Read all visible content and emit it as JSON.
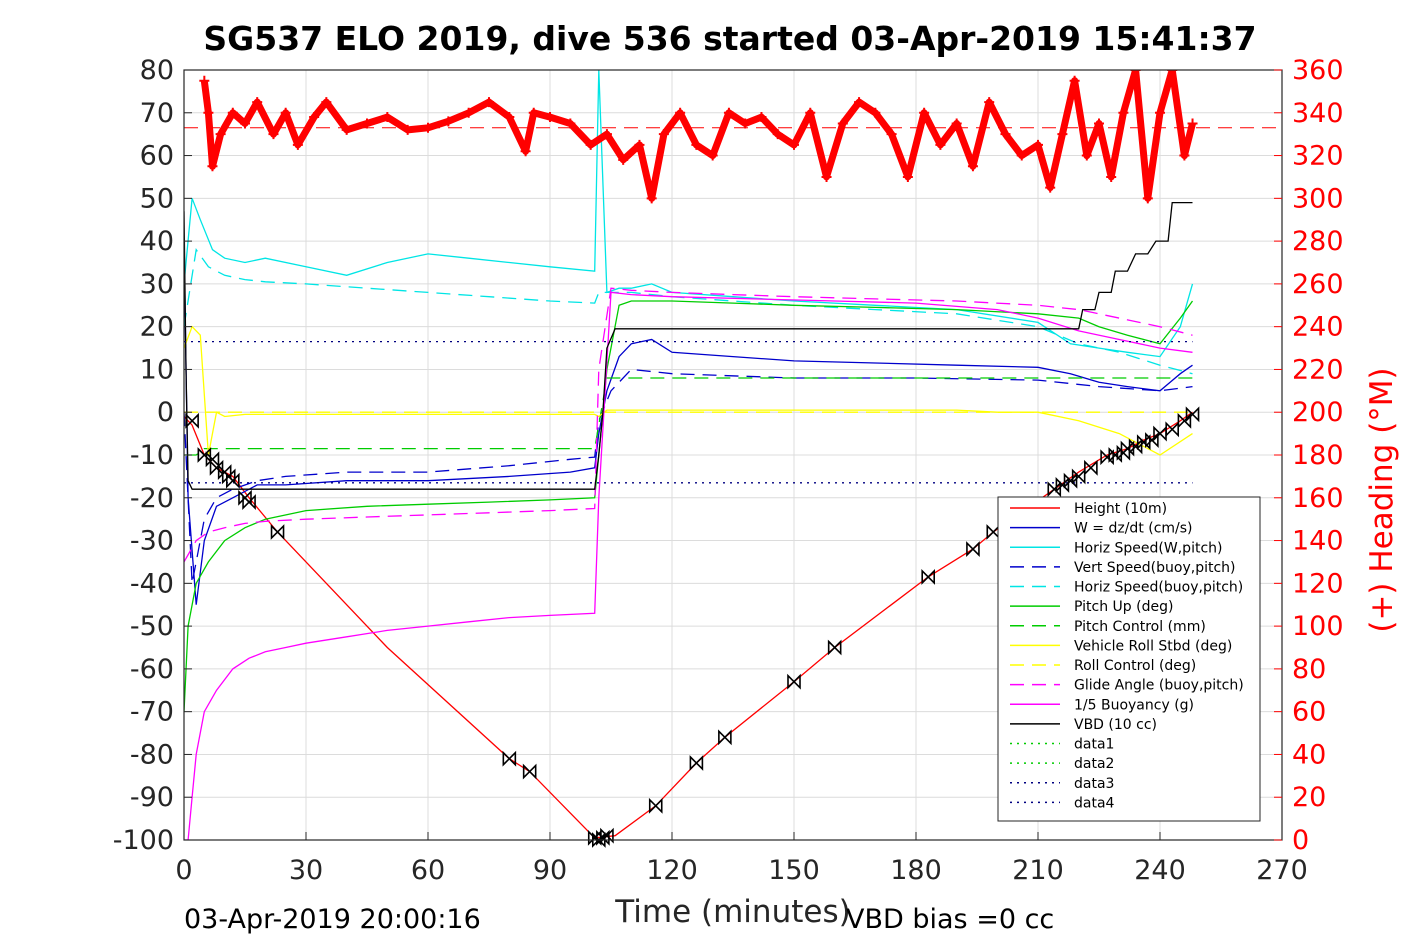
{
  "chart_data": {
    "type": "line",
    "title": "SG537 ELO 2019, dive 536 started 03-Apr-2019 15:41:37",
    "xlabel": "Time (minutes)",
    "ylabel_right": "(+) Heading (°M)",
    "footer_left": "03-Apr-2019 20:00:16",
    "footer_right": "VBD bias =0 cc",
    "xlim": [
      0,
      270
    ],
    "ylim": [
      -100,
      80
    ],
    "ylim_right": [
      0,
      360
    ],
    "xticks": [
      "0",
      "30",
      "60",
      "90",
      "120",
      "150",
      "180",
      "210",
      "240",
      "270"
    ],
    "yticks": [
      "80",
      "70",
      "60",
      "50",
      "40",
      "30",
      "20",
      "10",
      "0",
      "-10",
      "-20",
      "-30",
      "-40",
      "-50",
      "-60",
      "-70",
      "-80",
      "-90",
      "-100"
    ],
    "yticks_right": [
      "360",
      "340",
      "320",
      "300",
      "280",
      "260",
      "240",
      "220",
      "200",
      "180",
      "160",
      "140",
      "120",
      "100",
      "80",
      "60",
      "40",
      "20",
      "0"
    ],
    "grid": true,
    "legend_position": "bottom-right",
    "series": [
      {
        "name": "Height (10m)",
        "color": "#ff0000",
        "style": "solid",
        "x": [
          0,
          2,
          5,
          8,
          12,
          16,
          23,
          50,
          80,
          85,
          101,
          106,
          116,
          126,
          133,
          150,
          160,
          183,
          194,
          199,
          214,
          220,
          227,
          232,
          236,
          240,
          245,
          248
        ],
        "y": [
          -1,
          -3,
          -10,
          -13,
          -15,
          -20,
          -28,
          -55,
          -81,
          -84,
          -99.5,
          -99,
          -92,
          -82,
          -76,
          -63,
          -55,
          -38.5,
          -32,
          -28,
          -18,
          -14,
          -10,
          -8.5,
          -6.5,
          -5,
          -2,
          0
        ]
      },
      {
        "name": "W = dz/dt (cm/s)",
        "color": "#0000cc",
        "style": "solid",
        "x": [
          0,
          1,
          3,
          5,
          8,
          12,
          18,
          25,
          40,
          60,
          80,
          95,
          101,
          102,
          104,
          107,
          110,
          115,
          120,
          135,
          150,
          170,
          190,
          210,
          218,
          225,
          232,
          240,
          245,
          248
        ],
        "y": [
          40,
          -20,
          -45,
          -30,
          -22,
          -20,
          -17,
          -17,
          -16,
          -16,
          -15,
          -14,
          -13,
          -5,
          5,
          13,
          16,
          17,
          14,
          13,
          12,
          11.5,
          11,
          10.5,
          9,
          7,
          6,
          5,
          9,
          11
        ]
      },
      {
        "name": "Horiz Speed(W,pitch)",
        "color": "#00e5e5",
        "style": "solid",
        "x": [
          0,
          2,
          4,
          7,
          10,
          15,
          20,
          30,
          40,
          50,
          60,
          70,
          80,
          90,
          101,
          102,
          104,
          107,
          110,
          115,
          120,
          135,
          150,
          170,
          190,
          210,
          218,
          225,
          232,
          240,
          245,
          248
        ],
        "y": [
          30,
          50,
          45,
          38,
          36,
          35,
          36,
          34,
          32,
          35,
          37,
          36,
          35,
          34,
          33,
          80,
          28,
          29,
          29,
          30,
          28,
          27,
          26,
          25,
          24,
          21,
          16,
          15,
          14,
          13,
          20,
          30
        ]
      },
      {
        "name": "Vert Speed(buoy,pitch)",
        "color": "#0000cc",
        "style": "dashed",
        "x": [
          0,
          2,
          5,
          8,
          12,
          18,
          25,
          40,
          60,
          80,
          95,
          101,
          102,
          105,
          110,
          120,
          150,
          180,
          210,
          225,
          240,
          248
        ],
        "y": [
          0,
          -40,
          -25,
          -20,
          -18,
          -16,
          -15,
          -14,
          -14,
          -12.5,
          -11,
          -10.5,
          -2,
          5,
          10,
          9,
          8,
          8,
          7.5,
          6,
          5,
          6
        ]
      },
      {
        "name": "Horiz Speed(buoy,pitch)",
        "color": "#00e5e5",
        "style": "dashed",
        "x": [
          0,
          3,
          6,
          10,
          15,
          20,
          30,
          45,
          60,
          75,
          90,
          101,
          102,
          105,
          110,
          120,
          135,
          150,
          170,
          190,
          210,
          220,
          230,
          240,
          248
        ],
        "y": [
          20,
          38,
          34,
          32,
          31,
          30.5,
          30,
          29,
          28,
          27,
          26,
          25.5,
          28,
          28,
          28,
          27,
          26,
          25,
          24,
          23,
          20,
          16,
          14,
          11,
          9
        ]
      },
      {
        "name": "Pitch Up (deg)",
        "color": "#00cc00",
        "style": "solid",
        "x": [
          0,
          1,
          3,
          6,
          10,
          15,
          20,
          30,
          45,
          60,
          75,
          90,
          101,
          102,
          104,
          107,
          110,
          120,
          135,
          150,
          170,
          190,
          210,
          220,
          225,
          232,
          240,
          245,
          248
        ],
        "y": [
          -70,
          -50,
          -40,
          -35,
          -30,
          -27,
          -25,
          -23,
          -22,
          -21.5,
          -21,
          -20.5,
          -20,
          -10,
          10,
          25,
          26,
          26,
          25.5,
          25,
          24.5,
          24,
          23,
          22,
          20,
          18,
          16,
          22,
          26
        ]
      },
      {
        "name": "Pitch Control (mm)",
        "color": "#00cc00",
        "style": "dashed",
        "x": [
          0,
          3,
          5,
          101,
          102,
          104,
          248
        ],
        "y": [
          -10,
          -10,
          -8.5,
          -8.5,
          -3,
          8,
          8
        ]
      },
      {
        "name": "Vehicle Roll Stbd (deg)",
        "color": "#ffff00",
        "style": "solid",
        "x": [
          0,
          2,
          4,
          6,
          8,
          10,
          15,
          20,
          40,
          60,
          80,
          100,
          101,
          102,
          104,
          110,
          130,
          150,
          170,
          190,
          200,
          210,
          220,
          230,
          240,
          248
        ],
        "y": [
          15,
          20,
          18,
          -10,
          0,
          -1,
          -0.5,
          -0.5,
          -0.5,
          -0.5,
          -0.5,
          -0.5,
          -0.5,
          -1,
          0.5,
          0.5,
          0.5,
          0.5,
          0.5,
          0.5,
          0,
          0,
          -2,
          -5,
          -10,
          -5
        ]
      },
      {
        "name": "Roll Control (deg)",
        "color": "#ffff00",
        "style": "dashed",
        "x": [
          0,
          101,
          102,
          248
        ],
        "y": [
          0,
          0,
          0,
          0
        ]
      },
      {
        "name": "Glide Angle (buoy,pitch)",
        "color": "#ff00ff",
        "style": "dashed",
        "x": [
          0,
          3,
          6,
          10,
          15,
          20,
          30,
          45,
          60,
          75,
          90,
          101,
          102,
          105,
          110,
          120,
          135,
          150,
          170,
          190,
          210,
          220,
          230,
          240,
          248
        ],
        "y": [
          -35,
          -30,
          -28,
          -27,
          -26,
          -25.5,
          -25,
          -24.5,
          -24,
          -23.5,
          -23,
          -22.5,
          10,
          29,
          28.5,
          28,
          27.5,
          27,
          26.5,
          26,
          25,
          24,
          22,
          20,
          18
        ]
      },
      {
        "name": "1/5 Buoyancy (g)",
        "color": "#ff00ff",
        "style": "solid",
        "x": [
          0,
          1,
          2,
          3,
          5,
          8,
          12,
          16,
          20,
          25,
          30,
          40,
          50,
          60,
          70,
          80,
          90,
          101,
          102,
          105,
          110,
          120,
          140,
          160,
          180,
          200,
          210,
          220,
          230,
          240,
          248
        ],
        "y": [
          -100,
          -100,
          -90,
          -80,
          -70,
          -65,
          -60,
          -57.5,
          -56,
          -55,
          -54,
          -52.5,
          -51,
          -50,
          -49,
          -48,
          -47.5,
          -47,
          -20,
          28,
          27.5,
          27,
          26.5,
          26,
          25.5,
          24,
          22,
          19,
          17,
          15,
          14
        ]
      },
      {
        "name": "VBD (10 cc)",
        "color": "#000000",
        "style": "solid",
        "x": [
          0,
          0.5,
          1,
          2,
          101,
          102,
          103,
          104,
          106,
          220,
          221,
          224,
          225,
          228,
          229,
          232,
          234,
          237,
          239,
          242,
          243,
          246,
          248
        ],
        "y": [
          47,
          10,
          -16,
          -18,
          -18,
          -10,
          0,
          15,
          19.5,
          19.5,
          24,
          24,
          28,
          28,
          33,
          33,
          37,
          37,
          40,
          40,
          49,
          49,
          49
        ]
      },
      {
        "name": "data1",
        "color": "#00cc00",
        "style": "dotted",
        "x": [],
        "y": []
      },
      {
        "name": "data2",
        "color": "#00cc00",
        "style": "dotted",
        "x": [],
        "y": []
      },
      {
        "name": "data3",
        "color": "#000080",
        "style": "dotted",
        "x": [
          0,
          248
        ],
        "y": [
          16.5,
          16.5
        ]
      },
      {
        "name": "data4",
        "color": "#000080",
        "style": "dotted",
        "x": [
          0,
          248
        ],
        "y": [
          -16.5,
          -16.5
        ]
      }
    ],
    "height_markers": {
      "x": [
        2,
        5,
        7,
        8,
        10,
        11,
        12,
        15,
        16,
        23,
        80,
        85,
        101,
        102,
        103,
        104,
        116,
        126,
        133,
        150,
        160,
        183,
        194,
        199,
        214,
        216,
        218,
        220,
        223,
        227,
        229,
        231,
        232,
        234,
        236,
        238,
        240,
        243,
        246,
        248
      ],
      "y": [
        -2,
        -10,
        -11,
        -13,
        -14,
        -15,
        -16,
        -20,
        -21,
        -28,
        -81,
        -84,
        -99.5,
        -100,
        -99.5,
        -99,
        -92,
        -82,
        -76,
        -63,
        -55,
        -38.5,
        -32,
        -28,
        -18,
        -17,
        -16,
        -15,
        -13,
        -10.5,
        -10,
        -9.5,
        -8.5,
        -8,
        -7,
        -6.5,
        -5,
        -4,
        -2,
        -0.5
      ]
    },
    "heading": {
      "name": "(+) Heading (°M)",
      "color": "#ff0000",
      "mean": 333,
      "x": [
        5,
        6,
        7,
        9,
        12,
        15,
        18,
        22,
        25,
        28,
        32,
        35,
        40,
        45,
        50,
        55,
        60,
        65,
        70,
        75,
        80,
        84,
        86,
        90,
        95,
        100,
        104,
        108,
        112,
        115,
        118,
        122,
        126,
        130,
        134,
        138,
        142,
        146,
        150,
        154,
        158,
        162,
        166,
        170,
        174,
        178,
        182,
        186,
        190,
        194,
        198,
        202,
        206,
        210,
        213,
        216,
        219,
        222,
        225,
        228,
        231,
        234,
        237,
        240,
        243,
        246,
        248
      ],
      "y": [
        355,
        340,
        315,
        330,
        340,
        335,
        345,
        330,
        340,
        325,
        338,
        345,
        332,
        335,
        338,
        332,
        333,
        336,
        340,
        345,
        338,
        322,
        340,
        338,
        335,
        325,
        330,
        318,
        325,
        300,
        330,
        340,
        325,
        320,
        340,
        335,
        338,
        330,
        325,
        340,
        310,
        335,
        345,
        340,
        330,
        310,
        340,
        325,
        335,
        315,
        345,
        330,
        320,
        325,
        305,
        330,
        355,
        320,
        335,
        310,
        340,
        360,
        300,
        340,
        360,
        320,
        335
      ]
    },
    "legend_entries": [
      "Height (10m)",
      "W = dz/dt (cm/s)",
      "Horiz Speed(W,pitch)",
      "Vert Speed(buoy,pitch)",
      "Horiz Speed(buoy,pitch)",
      "Pitch Up (deg)",
      "Pitch Control (mm)",
      "Vehicle Roll Stbd (deg)",
      "Roll Control (deg)",
      "Glide Angle (buoy,pitch)",
      "1/5 Buoyancy (g)",
      "VBD (10 cc)",
      "data1",
      "data2",
      "data3",
      "data4"
    ]
  }
}
